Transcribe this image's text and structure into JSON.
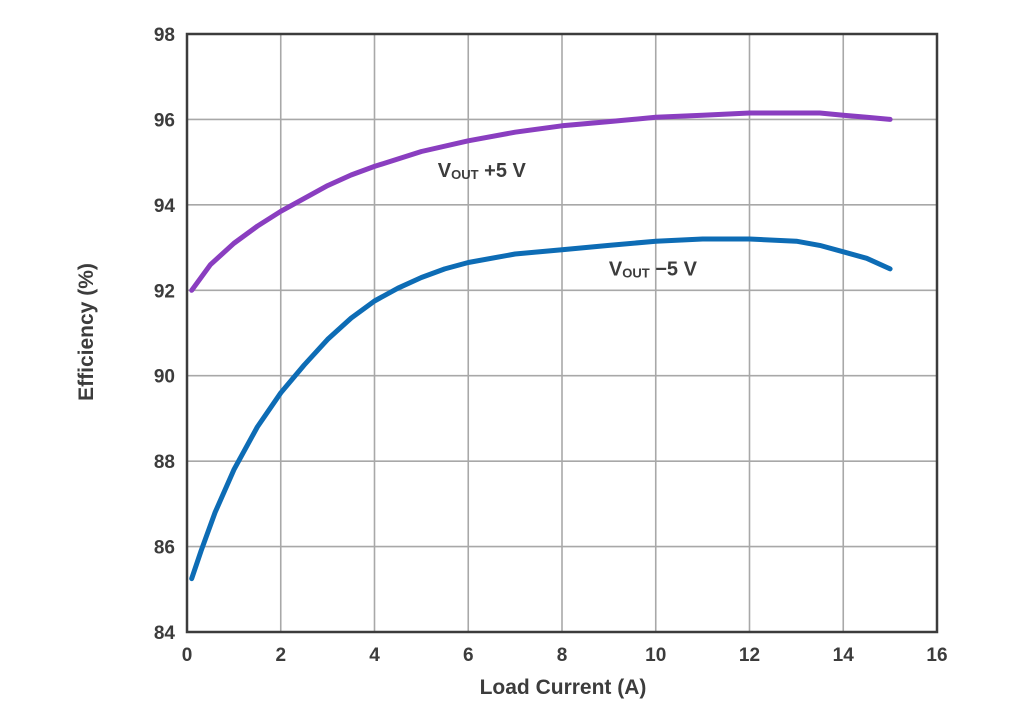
{
  "chart_data": {
    "type": "line",
    "title": "",
    "xlabel": "Load Current (A)",
    "ylabel": "Efficiency (%)",
    "xlim": [
      0,
      16
    ],
    "ylim": [
      84,
      98
    ],
    "xticks": [
      0,
      2,
      4,
      6,
      8,
      10,
      12,
      14,
      16
    ],
    "yticks": [
      84,
      86,
      88,
      90,
      92,
      94,
      96,
      98
    ],
    "grid": true,
    "colors": {
      "series_pos": "#8a3ec0",
      "series_neg": "#0d6cb5",
      "grid": "#a8a8a8",
      "frame": "#3c3c3c",
      "text": "#3c3c3c"
    },
    "series": [
      {
        "name": "VOUT +5 V",
        "label_main": "V",
        "label_sub": "OUT",
        "label_rest": " +5 V",
        "x": [
          0.1,
          0.5,
          1.0,
          1.5,
          2.0,
          2.5,
          3.0,
          3.5,
          4.0,
          5.0,
          6.0,
          7.0,
          8.0,
          9.0,
          10.0,
          11.0,
          12.0,
          13.0,
          13.5,
          14.0,
          14.5,
          15.0
        ],
        "values": [
          92.0,
          92.6,
          93.1,
          93.5,
          93.85,
          94.15,
          94.45,
          94.7,
          94.9,
          95.25,
          95.5,
          95.7,
          95.85,
          95.95,
          96.05,
          96.1,
          96.15,
          96.15,
          96.15,
          96.1,
          96.05,
          96.0
        ]
      },
      {
        "name": "VOUT −5 V",
        "label_main": "V",
        "label_sub": "OUT",
        "label_rest": " −5 V",
        "x": [
          0.1,
          0.3,
          0.6,
          1.0,
          1.5,
          2.0,
          2.5,
          3.0,
          3.5,
          4.0,
          4.5,
          5.0,
          5.5,
          6.0,
          7.0,
          8.0,
          9.0,
          10.0,
          11.0,
          12.0,
          13.0,
          13.5,
          14.0,
          14.5,
          15.0
        ],
        "values": [
          85.25,
          85.9,
          86.8,
          87.8,
          88.8,
          89.6,
          90.25,
          90.85,
          91.35,
          91.75,
          92.05,
          92.3,
          92.5,
          92.65,
          92.85,
          92.95,
          93.05,
          93.15,
          93.2,
          93.2,
          93.15,
          93.05,
          92.9,
          92.75,
          92.5
        ]
      }
    ],
    "annotations": [
      {
        "series": 0,
        "x": 5.35,
        "y": 94.65
      },
      {
        "series": 1,
        "x": 9.0,
        "y": 92.35
      }
    ]
  }
}
